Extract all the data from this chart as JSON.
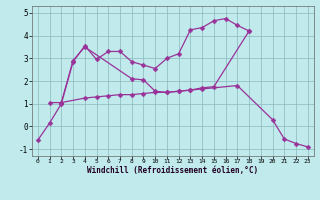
{
  "bg_color": "#c0eaec",
  "line_color": "#993399",
  "xlabel": "Windchill (Refroidissement éolien,°C)",
  "xlim_min": -0.5,
  "xlim_max": 23.5,
  "ylim_min": -1.3,
  "ylim_max": 5.3,
  "yticks": [
    -1,
    0,
    1,
    2,
    3,
    4,
    5
  ],
  "xticks": [
    0,
    1,
    2,
    3,
    4,
    5,
    6,
    7,
    8,
    9,
    10,
    11,
    12,
    13,
    14,
    15,
    16,
    17,
    18,
    19,
    20,
    21,
    22,
    23
  ],
  "s1_x": [
    0,
    1,
    2,
    3,
    4,
    5,
    6,
    7,
    8,
    9,
    10,
    11,
    12,
    13,
    14,
    15,
    16,
    17,
    18
  ],
  "s1_y": [
    -0.6,
    0.15,
    1.0,
    2.85,
    3.55,
    2.95,
    3.3,
    3.3,
    2.85,
    2.7,
    2.55,
    3.0,
    3.2,
    4.25,
    4.35,
    4.65,
    4.75,
    4.45,
    4.2
  ],
  "s2_x": [
    2,
    3,
    4,
    8,
    9,
    10,
    11,
    12,
    13,
    14,
    17,
    20,
    21,
    22,
    23
  ],
  "s2_y": [
    1.05,
    2.9,
    3.5,
    2.1,
    2.05,
    1.55,
    1.5,
    1.55,
    1.6,
    1.65,
    1.8,
    0.3,
    -0.55,
    -0.75,
    -0.9
  ],
  "s3_x": [
    1,
    2,
    4,
    5,
    6,
    7,
    8,
    9,
    10,
    11,
    12,
    13,
    14,
    15,
    18
  ],
  "s3_y": [
    1.05,
    1.05,
    1.25,
    1.3,
    1.35,
    1.4,
    1.4,
    1.45,
    1.5,
    1.5,
    1.55,
    1.6,
    1.7,
    1.75,
    4.2
  ],
  "xlabel_fontsize": 5.5,
  "ytick_fontsize": 5.5,
  "xtick_fontsize": 4.5,
  "marker_size": 2.5,
  "linewidth": 0.9
}
